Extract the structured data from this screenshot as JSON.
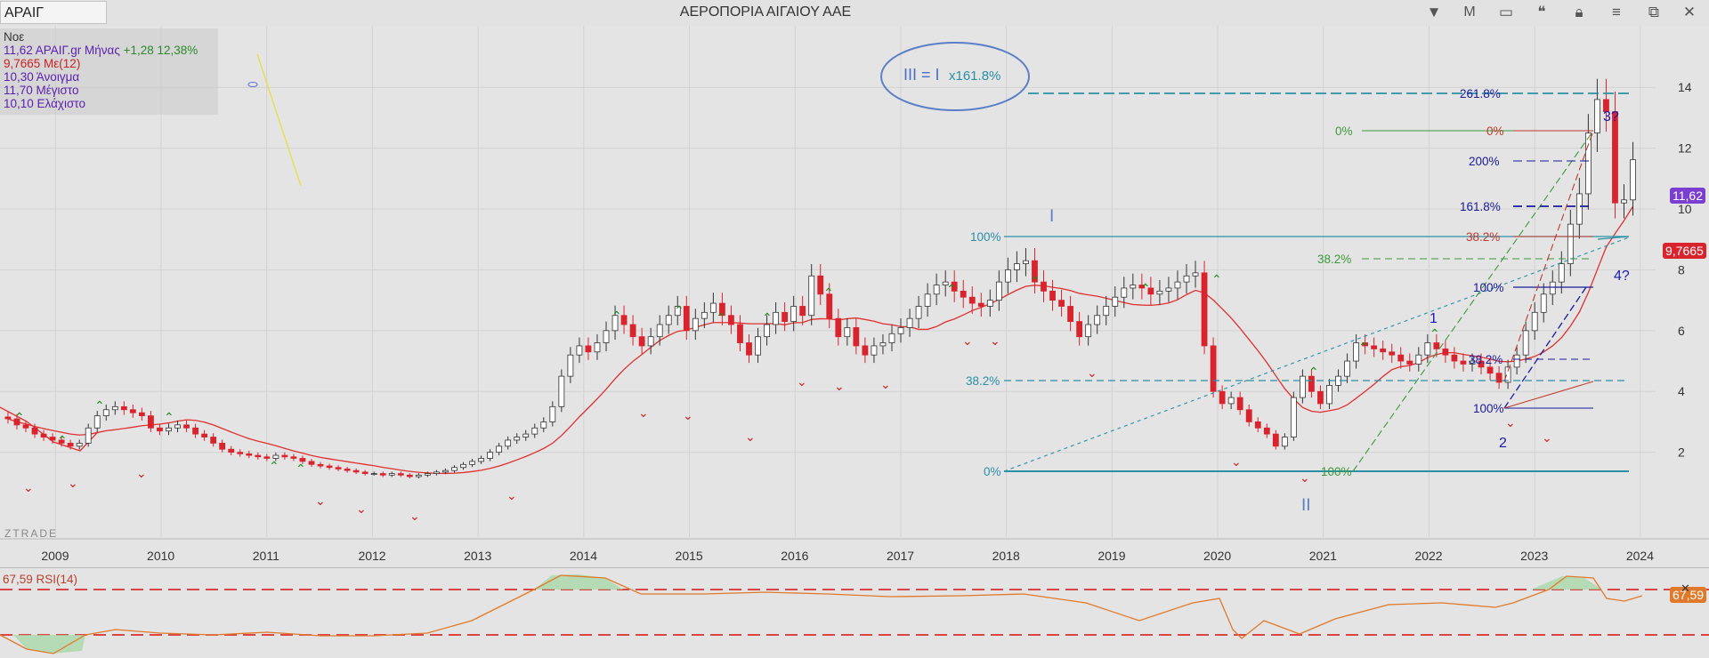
{
  "window": {
    "symbol": "ΑΡΑΙΓ",
    "title": "ΑΕΡΟΠΟΡΙΑ ΑΙΓΑΙΟΥ ΑΑΕ",
    "period_button": "M"
  },
  "legend": {
    "date": "Νοε",
    "close_line": "11,62 ΑΡΑΙΓ.gr Μήνας",
    "change": "+1,28 12,38%",
    "ma_line": "9,7665 Με(12)",
    "open_line": "10,30 Άνοιγμα",
    "high_line": "11,70 Μέγιστο",
    "low_line": "10,10 Ελάχιστο"
  },
  "price_tags": {
    "last": "11,62",
    "ma": "9,7665",
    "rsi": "67,59"
  },
  "watermark": "ZTRADE",
  "rsi_label": "67,59 RSI(14)",
  "colors": {
    "up": "#ffffff",
    "down": "#d9232d",
    "ma": "#e03030",
    "rsi": "#e07a2a",
    "fib_teal": "#2a8fa6",
    "fib_green": "#3a9a3a",
    "fib_navy": "#1a1a9a"
  },
  "annotations": {
    "ellipse_text_a": "III = I",
    "ellipse_text_b": "x161.8%",
    "wave_I": "I",
    "wave_II": "II",
    "wave_1": "1",
    "wave_2": "2",
    "wave_3": "3?",
    "wave_4": "4?"
  },
  "fib_labels": {
    "t100": "100%",
    "t382": "38.2%",
    "t0": "0%",
    "g0": "0%",
    "g382": "38.2%",
    "g100": "100%",
    "b2618": "261.8%",
    "b200": "200%",
    "b1618": "161.8%",
    "b100": "100%",
    "b382": "38.2%",
    "b100low": "100%",
    "r0": "0%",
    "r382": "38.2%"
  },
  "chart_data": {
    "type": "candlestick",
    "title": "ΑΕΡΟΠΟΡΙΑ ΑΙΓΑΙΟΥ ΑΑΕ",
    "x_ticks": [
      "2009",
      "2010",
      "2011",
      "2012",
      "2013",
      "2014",
      "2015",
      "2016",
      "2017",
      "2018",
      "2019",
      "2020",
      "2021",
      "2022",
      "2023",
      "2024"
    ],
    "y_ticks": [
      2,
      4,
      6,
      8,
      10,
      12,
      14
    ],
    "ylim": [
      1.2,
      15.6
    ],
    "xlim": [
      2008.5,
      2024.6
    ],
    "series": [
      {
        "name": "ΑΡΑΙΓ.gr Μήνας",
        "close": [
          3.1,
          2.9,
          2.8,
          2.6,
          2.5,
          2.4,
          2.3,
          2.2,
          2.3,
          2.8,
          3.2,
          3.4,
          3.5,
          3.4,
          3.3,
          3.2,
          2.8,
          2.7,
          2.8,
          2.9,
          2.8,
          2.6,
          2.5,
          2.3,
          2.1,
          2.0,
          1.95,
          1.9,
          1.85,
          1.8,
          1.9,
          1.85,
          1.8,
          1.7,
          1.6,
          1.55,
          1.5,
          1.45,
          1.4,
          1.35,
          1.3,
          1.3,
          1.25,
          1.3,
          1.25,
          1.2,
          1.25,
          1.3,
          1.35,
          1.4,
          1.5,
          1.6,
          1.7,
          1.8,
          2.0,
          2.2,
          2.4,
          2.5,
          2.6,
          2.8,
          3.0,
          3.5,
          4.5,
          5.2,
          5.5,
          5.3,
          5.6,
          6.0,
          6.5,
          6.2,
          5.8,
          5.5,
          5.8,
          6.2,
          6.5,
          6.8,
          6.0,
          6.4,
          6.6,
          6.9,
          6.5,
          6.2,
          5.6,
          5.2,
          5.8,
          6.2,
          6.6,
          6.3,
          6.8,
          6.5,
          7.8,
          7.2,
          6.4,
          5.8,
          6.1,
          5.5,
          5.2,
          5.5,
          5.6,
          5.9,
          6.1,
          6.4,
          6.8,
          7.2,
          7.5,
          7.6,
          7.3,
          7.1,
          6.9,
          6.8,
          7.0,
          7.6,
          8.0,
          8.2,
          8.3,
          7.6,
          7.3,
          7.0,
          6.8,
          6.3,
          5.8,
          6.2,
          6.5,
          6.8,
          7.1,
          7.4,
          7.5,
          7.4,
          7.2,
          7.3,
          7.4,
          7.6,
          7.8,
          7.9,
          5.5,
          4.0,
          3.6,
          3.8,
          3.4,
          3.0,
          2.8,
          2.6,
          2.2,
          2.5,
          3.8,
          4.5,
          4.0,
          3.6,
          4.2,
          4.5,
          5.0,
          5.6,
          5.5,
          5.4,
          5.3,
          5.2,
          5.0,
          4.9,
          5.2,
          5.6,
          5.4,
          5.2,
          5.0,
          4.9,
          5.0,
          4.8,
          4.6,
          4.3,
          4.8,
          5.2,
          6.0,
          6.6,
          7.2,
          7.6,
          8.2,
          9.5,
          10.5,
          12.5,
          13.6,
          13.2,
          10.2,
          10.3,
          11.62
        ]
      },
      {
        "name": "Με(12)"
      },
      {
        "name": "RSI(14)"
      }
    ]
  }
}
